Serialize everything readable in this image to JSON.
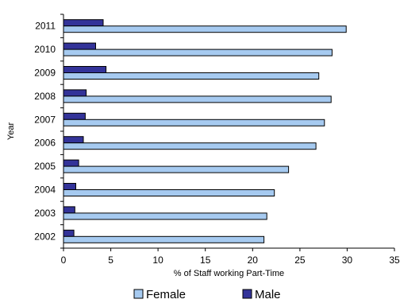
{
  "chart_data": {
    "type": "bar",
    "orientation": "horizontal",
    "categories": [
      "2002",
      "2003",
      "2004",
      "2005",
      "2006",
      "2007",
      "2008",
      "2009",
      "2010",
      "2011"
    ],
    "series": [
      {
        "name": "Female",
        "color": "#A6CAF0",
        "values": [
          21.2,
          21.5,
          22.3,
          23.8,
          26.7,
          27.6,
          28.3,
          27.0,
          28.4,
          29.9
        ]
      },
      {
        "name": "Male",
        "color": "#333399",
        "values": [
          1.1,
          1.2,
          1.3,
          1.6,
          2.1,
          2.3,
          2.4,
          4.5,
          3.4,
          4.2
        ]
      }
    ],
    "xlabel": "% of Staff working Part-Time",
    "ylabel": "Year",
    "xlim": [
      0,
      35
    ],
    "xticks": [
      0,
      5,
      10,
      15,
      20,
      25,
      30,
      35
    ],
    "grid": false,
    "legend": "bottom"
  }
}
